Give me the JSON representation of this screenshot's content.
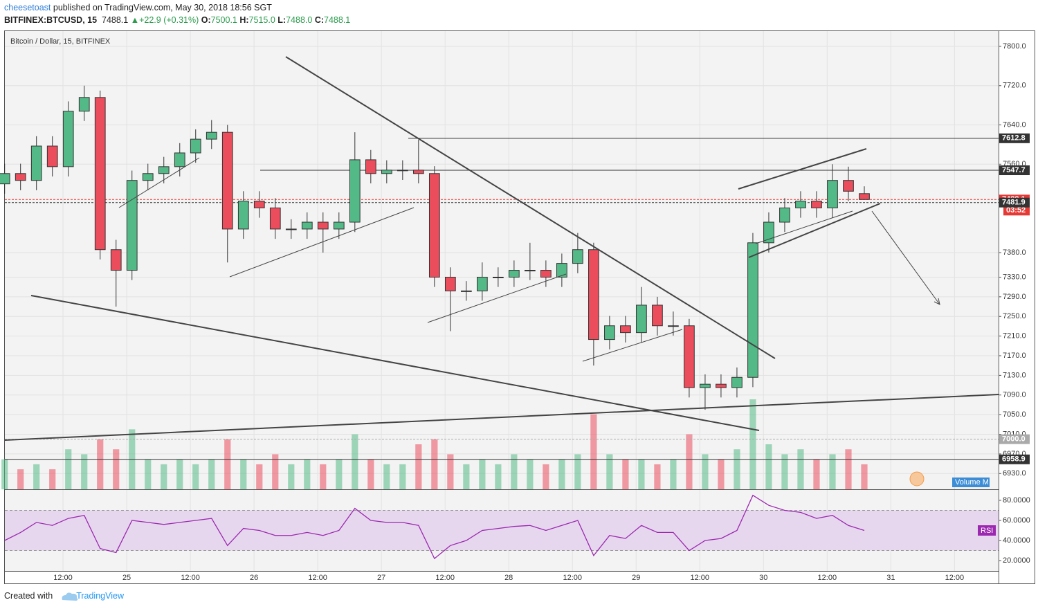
{
  "header": {
    "author": "cheesetoast",
    "published": "published on TradingView.com, May 30, 2018 18:56 SGT",
    "symbol": "BITFINEX:BTCUSD, 15",
    "last": "7488.1",
    "arrow": "▲",
    "change": "+22.9 (+0.31%)",
    "ohlc": [
      {
        "k": "O:",
        "v": "7500.1"
      },
      {
        "k": "H:",
        "v": "7515.0"
      },
      {
        "k": "L:",
        "v": "7488.0"
      },
      {
        "k": "C:",
        "v": "7488.1"
      }
    ]
  },
  "chart_data": [
    {
      "type": "candlestick",
      "title": "Bitcoin / Dollar, 15, BITFINEX",
      "up_color": "#53b987",
      "down_color": "#eb4d5c",
      "x": [
        1,
        4,
        7,
        10,
        13,
        16,
        19,
        22,
        25,
        28,
        31,
        34,
        37,
        40,
        43,
        46,
        49,
        52,
        55,
        58,
        61,
        64,
        67,
        70,
        73,
        76,
        79,
        82,
        85,
        88,
        91,
        94,
        97,
        100,
        103,
        106,
        109,
        112,
        115,
        118,
        121,
        124,
        127,
        130,
        133,
        136,
        139,
        142,
        145,
        148,
        151,
        154,
        157,
        160,
        163
      ],
      "open": [
        7520,
        7541,
        7527,
        7597,
        7555,
        7668,
        7696,
        7386,
        7344,
        7527,
        7541,
        7555,
        7583,
        7611,
        7625,
        7428,
        7485,
        7471,
        7428,
        7428,
        7442,
        7428,
        7442,
        7569,
        7541,
        7548,
        7548,
        7541,
        7330,
        7302,
        7302,
        7330,
        7330,
        7344,
        7344,
        7330,
        7358,
        7386,
        7203,
        7231,
        7217,
        7273,
        7231,
        7231,
        7105,
        7112,
        7105,
        7126,
        7400,
        7442,
        7471,
        7485,
        7471,
        7527,
        7500.1
      ],
      "high": [
        7561,
        7561,
        7617,
        7617,
        7688,
        7720,
        7710,
        7406,
        7547,
        7561,
        7575,
        7603,
        7631,
        7650,
        7640,
        7505,
        7505,
        7491,
        7448,
        7462,
        7462,
        7462,
        7625,
        7589,
        7568,
        7568,
        7610,
        7556,
        7350,
        7322,
        7360,
        7350,
        7364,
        7400,
        7364,
        7378,
        7420,
        7400,
        7251,
        7251,
        7310,
        7290,
        7260,
        7245,
        7132,
        7132,
        7146,
        7420,
        7462,
        7491,
        7505,
        7505,
        7560,
        7555,
        7515
      ],
      "low": [
        7500,
        7507,
        7507,
        7535,
        7535,
        7648,
        7366,
        7270,
        7324,
        7507,
        7521,
        7535,
        7563,
        7591,
        7360,
        7408,
        7451,
        7408,
        7408,
        7408,
        7380,
        7408,
        7422,
        7521,
        7521,
        7528,
        7521,
        7310,
        7220,
        7282,
        7282,
        7310,
        7310,
        7324,
        7310,
        7310,
        7338,
        7150,
        7183,
        7197,
        7197,
        7211,
        7211,
        7085,
        7060,
        7085,
        7085,
        7106,
        7380,
        7422,
        7451,
        7451,
        7451,
        7485,
        7488
      ],
      "close": [
        7541,
        7527,
        7597,
        7555,
        7668,
        7696,
        7386,
        7344,
        7527,
        7541,
        7555,
        7583,
        7611,
        7625,
        7428,
        7485,
        7471,
        7428,
        7428,
        7442,
        7428,
        7442,
        7569,
        7541,
        7548,
        7548,
        7541,
        7330,
        7302,
        7302,
        7330,
        7330,
        7344,
        7344,
        7330,
        7358,
        7386,
        7203,
        7231,
        7217,
        7273,
        7231,
        7231,
        7105,
        7112,
        7105,
        7126,
        7400,
        7442,
        7471,
        7485,
        7471,
        7527,
        7505,
        7488.1
      ],
      "xlim": [
        1.04,
        188.3
      ],
      "xticks": [
        {
          "value": 12,
          "label": "12:00"
        },
        {
          "value": 24,
          "label": "25"
        },
        {
          "value": 36,
          "label": "12:00"
        },
        {
          "value": 48,
          "label": "26"
        },
        {
          "value": 60,
          "label": "12:00"
        },
        {
          "value": 72,
          "label": "27"
        },
        {
          "value": 84,
          "label": "12:00"
        },
        {
          "value": 96,
          "label": "28"
        },
        {
          "value": 108,
          "label": "12:00"
        },
        {
          "value": 120,
          "label": "29"
        },
        {
          "value": 132,
          "label": "12:00"
        },
        {
          "value": 144,
          "label": "30"
        },
        {
          "value": 156,
          "label": "12:00"
        },
        {
          "value": 168,
          "label": "31"
        },
        {
          "value": 180,
          "label": "12:00"
        }
      ],
      "ylim": [
        6898,
        7831
      ],
      "yticks": [
        {
          "value": 7800,
          "label": "7800.0"
        },
        {
          "value": 7720,
          "label": "7720.0"
        },
        {
          "value": 7640,
          "label": "7640.0"
        },
        {
          "value": 7560,
          "label": "7560.0"
        },
        {
          "value": 7380,
          "label": "7380.0"
        },
        {
          "value": 7330,
          "label": "7330.0"
        },
        {
          "value": 7290,
          "label": "7290.0"
        },
        {
          "value": 7250,
          "label": "7250.0"
        },
        {
          "value": 7210,
          "label": "7210.0"
        },
        {
          "value": 7170,
          "label": "7170.0"
        },
        {
          "value": 7130,
          "label": "7130.0"
        },
        {
          "value": 7090,
          "label": "7090.0"
        },
        {
          "value": 7050,
          "label": "7050.0"
        },
        {
          "value": 7010,
          "label": "7010.0"
        },
        {
          "value": 6970,
          "label": "6970.0"
        },
        {
          "value": 6930,
          "label": "6930.0"
        }
      ],
      "grid": true,
      "price_lines": [
        {
          "value": 7612.8,
          "label": "7612.8",
          "color": "#333333"
        },
        {
          "value": 7547.7,
          "label": "7547.7",
          "color": "#333333"
        },
        {
          "value": 7488.1,
          "label": "7488.1",
          "color": "#e53935"
        },
        {
          "value": 7481.9,
          "label": "7481.9",
          "color": "#333333"
        },
        {
          "value": 7000,
          "label": "7000.0",
          "color": "#aaaaaa"
        },
        {
          "value": 6958.9,
          "label": "6958.9",
          "color": "#333333"
        }
      ],
      "countdown": "03:52"
    },
    {
      "type": "bar",
      "name": "Volume M",
      "color": "#3c8dd6",
      "values": [
        30,
        20,
        25,
        20,
        40,
        35,
        50,
        40,
        60,
        30,
        25,
        30,
        25,
        30,
        50,
        30,
        25,
        35,
        25,
        30,
        25,
        30,
        55,
        30,
        25,
        25,
        45,
        50,
        35,
        25,
        30,
        25,
        35,
        30,
        25,
        30,
        35,
        75,
        35,
        30,
        30,
        25,
        30,
        55,
        35,
        30,
        40,
        90,
        45,
        35,
        40,
        30,
        35,
        40,
        25
      ]
    },
    {
      "type": "line",
      "name": "RSI",
      "color": "#9c27b0",
      "band": [
        30,
        70
      ],
      "ylim": [
        9.7,
        90.3
      ],
      "yticks": [
        {
          "value": 80,
          "label": "80.0000"
        },
        {
          "value": 60,
          "label": "60.0000"
        },
        {
          "value": 40,
          "label": "40.0000"
        },
        {
          "value": 20,
          "label": "20.0000"
        }
      ],
      "values": [
        40,
        48,
        58,
        55,
        62,
        65,
        32,
        28,
        60,
        58,
        56,
        58,
        60,
        62,
        35,
        52,
        50,
        45,
        45,
        48,
        45,
        50,
        72,
        60,
        58,
        58,
        55,
        22,
        35,
        40,
        50,
        52,
        54,
        55,
        50,
        55,
        60,
        25,
        45,
        42,
        55,
        48,
        48,
        30,
        40,
        42,
        50,
        85,
        75,
        70,
        68,
        62,
        65,
        55,
        50
      ]
    }
  ],
  "footer": {
    "created": "Created with",
    "brand": "TradingView"
  }
}
